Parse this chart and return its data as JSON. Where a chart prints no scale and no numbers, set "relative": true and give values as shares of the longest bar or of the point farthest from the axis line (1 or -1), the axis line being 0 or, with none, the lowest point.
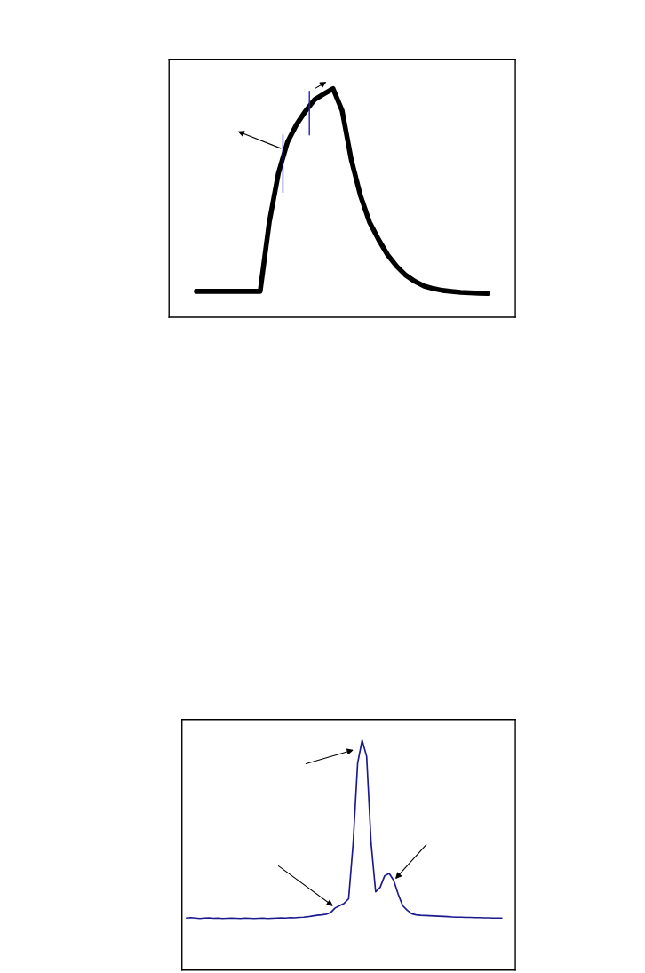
{
  "chart_data": [
    {
      "type": "line",
      "relative": true,
      "color": "#000000",
      "categories": [
        null,
        null,
        null,
        null,
        null,
        null,
        null,
        null,
        null,
        null,
        null,
        null,
        null,
        null,
        null,
        null,
        null,
        null,
        null,
        null,
        null,
        null,
        null,
        null,
        null,
        null,
        null,
        null,
        null,
        null,
        null,
        null,
        null
      ],
      "values": [
        0.113,
        0.113,
        0.113,
        0.113,
        0.113,
        0.113,
        0.113,
        0.113,
        0.416,
        0.63,
        0.767,
        0.844,
        0.903,
        0.953,
        0.977,
        1.0,
        0.903,
        0.689,
        0.533,
        0.416,
        0.339,
        0.272,
        0.222,
        0.183,
        0.156,
        0.136,
        0.125,
        0.117,
        0.113,
        0.109,
        0.107,
        0.105,
        0.104
      ]
    },
    {
      "type": "line",
      "relative": true,
      "color": "#1a1a8c",
      "categories": [
        null,
        null,
        null,
        null,
        null,
        null,
        null,
        null,
        null,
        null,
        null,
        null,
        null,
        null,
        null,
        null,
        null,
        null,
        null,
        null,
        null,
        null,
        null,
        null,
        null,
        null,
        null,
        null,
        null,
        null,
        null,
        null,
        null,
        null,
        null,
        null,
        null,
        null,
        null,
        null,
        null,
        null,
        null,
        null,
        null,
        null,
        null,
        null,
        null,
        null,
        null,
        null,
        null,
        null,
        null,
        null,
        null,
        null,
        null,
        null,
        null,
        null,
        null,
        null,
        null,
        null,
        null,
        null,
        null,
        null,
        null
      ],
      "values": [
        0.226,
        0.228,
        0.226,
        0.224,
        0.226,
        0.227,
        0.225,
        0.226,
        0.224,
        0.225,
        0.226,
        0.225,
        0.224,
        0.226,
        0.225,
        0.224,
        0.225,
        0.226,
        0.224,
        0.225,
        0.226,
        0.227,
        0.226,
        0.228,
        0.227,
        0.229,
        0.23,
        0.232,
        0.235,
        0.238,
        0.24,
        0.243,
        0.25,
        0.27,
        0.28,
        0.29,
        0.31,
        0.55,
        0.9,
        1.0,
        0.93,
        0.55,
        0.34,
        0.36,
        0.41,
        0.42,
        0.39,
        0.33,
        0.28,
        0.26,
        0.245,
        0.24,
        0.238,
        0.237,
        0.236,
        0.235,
        0.234,
        0.233,
        0.232,
        0.231,
        0.23,
        0.23,
        0.229,
        0.229,
        0.228,
        0.228,
        0.227,
        0.227,
        0.226,
        0.226,
        0.226
      ]
    }
  ]
}
